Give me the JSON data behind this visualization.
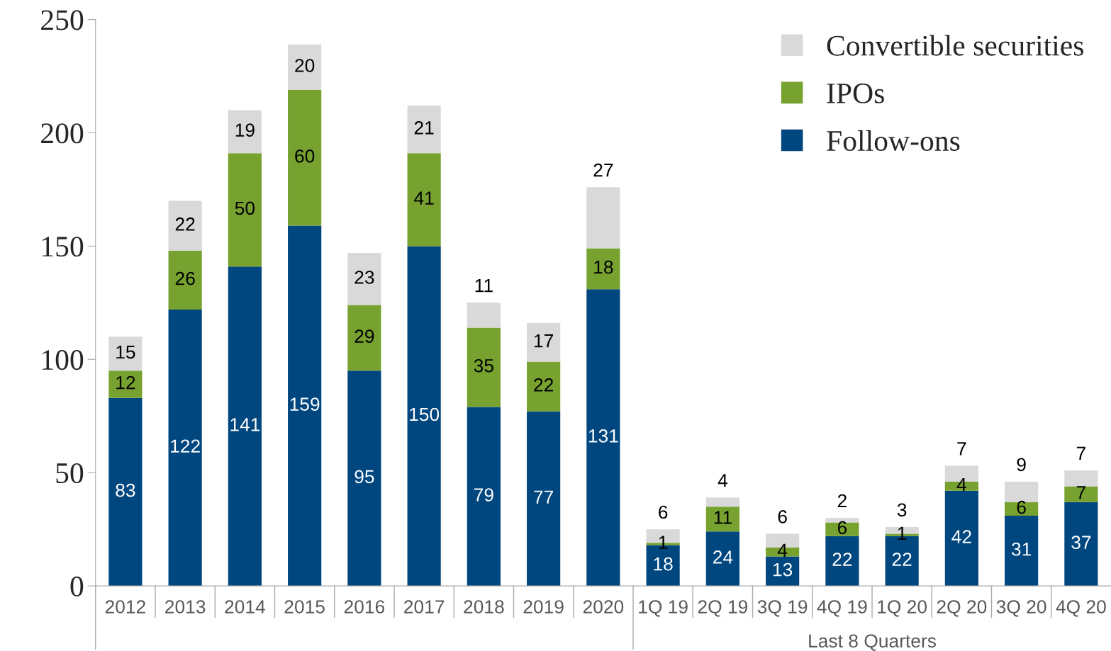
{
  "chart_data": {
    "type": "bar",
    "stacked": true,
    "data_labels": true,
    "categories": [
      "2012",
      "2013",
      "2014",
      "2015",
      "2016",
      "2017",
      "2018",
      "2019",
      "2020",
      "1Q 19",
      "2Q 19",
      "3Q 19",
      "4Q 19",
      "1Q 20",
      "2Q 20",
      "3Q 20",
      "4Q 20"
    ],
    "series": [
      {
        "name": "Follow-ons",
        "color": "#00467f",
        "values": [
          83,
          122,
          141,
          159,
          95,
          150,
          79,
          77,
          131,
          18,
          24,
          13,
          22,
          22,
          42,
          31,
          37
        ]
      },
      {
        "name": "IPOs",
        "color": "#77a22f",
        "values": [
          12,
          26,
          50,
          60,
          29,
          41,
          35,
          22,
          18,
          1,
          11,
          4,
          6,
          1,
          4,
          6,
          7
        ]
      },
      {
        "name": "Convertible securities",
        "color": "#d9d9d9",
        "values": [
          15,
          22,
          19,
          20,
          23,
          21,
          11,
          17,
          27,
          6,
          4,
          6,
          2,
          3,
          7,
          9,
          7
        ]
      }
    ],
    "ylim": [
      0,
      250
    ],
    "yticks": [
      0,
      50,
      100,
      150,
      200,
      250
    ],
    "grid": false,
    "legend": "top right",
    "annotations": [
      "Last 8 Quarters"
    ]
  }
}
